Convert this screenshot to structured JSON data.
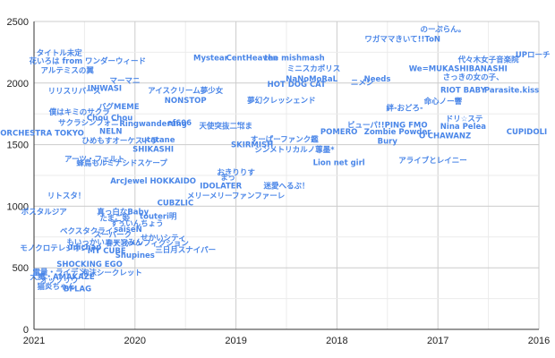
{
  "chart_data": {
    "type": "scatter",
    "title": "",
    "xlabel": "",
    "ylabel": "",
    "x_reversed": true,
    "xlim": [
      2021,
      2016
    ],
    "ylim": [
      0,
      2500
    ],
    "grid": true,
    "x_ticks": [
      "2021",
      "2020",
      "2019",
      "2018",
      "2017",
      "2016"
    ],
    "y_ticks": [
      "0",
      "500",
      "1000",
      "1500",
      "2000",
      "2500"
    ],
    "label_color": "#4a86e8",
    "points": [
      {
        "label": "のーぷらん。",
        "x": 2016.95,
        "y": 2440
      },
      {
        "label": "ワガママきいて!!ToN",
        "x": 2017.35,
        "y": 2360
      },
      {
        "label": "代々木女子音楽院",
        "x": 2016.5,
        "y": 2190
      },
      {
        "label": "UPローチ",
        "x": 2016.06,
        "y": 2230
      },
      {
        "label": "Mystear",
        "x": 2019.25,
        "y": 2205
      },
      {
        "label": "CentHeaven",
        "x": 2018.84,
        "y": 2205
      },
      {
        "label": "the mishmash",
        "x": 2018.42,
        "y": 2205
      },
      {
        "label": "タイトル未定",
        "x": 2020.75,
        "y": 2245
      },
      {
        "label": "花いろは from ワンダーウィード",
        "x": 2020.47,
        "y": 2180
      },
      {
        "label": "アルテミスの翼",
        "x": 2020.67,
        "y": 2105
      },
      {
        "label": "ミニスカポリス",
        "x": 2018.23,
        "y": 2120
      },
      {
        "label": "We=MUKASHIBANASHI",
        "x": 2016.8,
        "y": 2120
      },
      {
        "label": "さっきの女の子、",
        "x": 2016.65,
        "y": 2050
      },
      {
        "label": "マーマニ",
        "x": 2020.1,
        "y": 2020
      },
      {
        "label": "NaNoMoRaL",
        "x": 2018.25,
        "y": 2035
      },
      {
        "label": "ニメシ",
        "x": 2017.75,
        "y": 2005
      },
      {
        "label": "Needs",
        "x": 2017.6,
        "y": 2035
      },
      {
        "label": "HOT DOG CAT",
        "x": 2018.4,
        "y": 1990
      },
      {
        "label": "INIWASI",
        "x": 2020.3,
        "y": 1960
      },
      {
        "label": "リリスリバース",
        "x": 2020.6,
        "y": 1935
      },
      {
        "label": "アイスクリーム夢少女",
        "x": 2019.5,
        "y": 1940
      },
      {
        "label": "RIOT BABY",
        "x": 2016.75,
        "y": 1945
      },
      {
        "label": "Parasite.kiss",
        "x": 2016.27,
        "y": 1945
      },
      {
        "label": "NONSTOP",
        "x": 2019.5,
        "y": 1860
      },
      {
        "label": "夢幻クレッシェンド",
        "x": 2018.55,
        "y": 1860
      },
      {
        "label": "命心ノー響",
        "x": 2016.95,
        "y": 1855
      },
      {
        "label": "バグMEME",
        "x": 2020.16,
        "y": 1810
      },
      {
        "label": "絆-おどろ-",
        "x": 2017.33,
        "y": 1800
      },
      {
        "label": "僕はキミのサクラ",
        "x": 2020.55,
        "y": 1765
      },
      {
        "label": "Chou Chou",
        "x": 2020.25,
        "y": 1720
      },
      {
        "label": "ドリ☆ステ",
        "x": 2016.74,
        "y": 1710
      },
      {
        "label": "サクラシンフォニ",
        "x": 2020.46,
        "y": 1680
      },
      {
        "label": "Ringwanderung",
        "x": 2019.82,
        "y": 1670
      },
      {
        "label": "ef606",
        "x": 2019.56,
        "y": 1680
      },
      {
        "label": "天使突抜二㌖ま",
        "x": 2019.1,
        "y": 1655
      },
      {
        "label": "ビューパ!!PING FMO",
        "x": 2017.5,
        "y": 1660
      },
      {
        "label": "Nina Pelea",
        "x": 2016.75,
        "y": 1650
      },
      {
        "label": "Zombie Powder",
        "x": 2017.4,
        "y": 1605
      },
      {
        "label": "POMERO",
        "x": 2017.98,
        "y": 1605
      },
      {
        "label": "O'CHAWANZ",
        "x": 2016.93,
        "y": 1575
      },
      {
        "label": "CUPIDOLI",
        "x": 2016.12,
        "y": 1605
      },
      {
        "label": "ORCHESTRA TOKYO",
        "x": 2020.92,
        "y": 1595
      },
      {
        "label": "NELN",
        "x": 2020.24,
        "y": 1610
      },
      {
        "label": "ひめもすオーケストラ",
        "x": 2020.15,
        "y": 1535
      },
      {
        "label": "utatane",
        "x": 2019.77,
        "y": 1540
      },
      {
        "label": "Bury",
        "x": 2017.5,
        "y": 1530
      },
      {
        "label": "すーぱーファンク鑑",
        "x": 2018.52,
        "y": 1545
      },
      {
        "label": "SKIRMISH",
        "x": 2018.84,
        "y": 1500
      },
      {
        "label": "シンメトリカルノ蓴墨*",
        "x": 2018.42,
        "y": 1460
      },
      {
        "label": "SHIKASHI",
        "x": 2019.82,
        "y": 1465
      },
      {
        "label": "アーツ・フェルト",
        "x": 2020.4,
        "y": 1385
      },
      {
        "label": "アライブとレイニー",
        "x": 2017.05,
        "y": 1375
      },
      {
        "label": "Lion net girl",
        "x": 2017.98,
        "y": 1355
      },
      {
        "label": "蜂鳥もルミナシドスケープ",
        "x": 2020.13,
        "y": 1350
      },
      {
        "label": "おきりりす",
        "x": 2019.0,
        "y": 1275
      },
      {
        "label": "まっ",
        "x": 2019.08,
        "y": 1235
      },
      {
        "label": "ArcJewel HOKKAIDO",
        "x": 2019.82,
        "y": 1205
      },
      {
        "label": "IDOLATER",
        "x": 2019.15,
        "y": 1165
      },
      {
        "label": "迷愛へるぶ！",
        "x": 2018.5,
        "y": 1165
      },
      {
        "label": "リトスタ！",
        "x": 2020.68,
        "y": 1085
      },
      {
        "label": "メリーメリーファンファーレ",
        "x": 2019.0,
        "y": 1085
      },
      {
        "label": "CUBZLIC",
        "x": 2019.6,
        "y": 1030
      },
      {
        "label": "ポスタルジア",
        "x": 2020.9,
        "y": 955
      },
      {
        "label": "真っ白なBaby",
        "x": 2020.12,
        "y": 955
      },
      {
        "label": "touteri明",
        "x": 2019.77,
        "y": 920
      },
      {
        "label": "たまご姫",
        "x": 2020.2,
        "y": 905
      },
      {
        "label": "すぅいんちょう",
        "x": 2019.98,
        "y": 860
      },
      {
        "label": "saiseN",
        "x": 2020.07,
        "y": 815
      },
      {
        "label": "ベクスタクライ",
        "x": 2020.48,
        "y": 800
      },
      {
        "label": "スーパーク",
        "x": 2020.22,
        "y": 770
      },
      {
        "label": "せかいシティ",
        "x": 2019.72,
        "y": 745
      },
      {
        "label": "もいっかいニャンみん",
        "x": 2020.3,
        "y": 710
      },
      {
        "label": "春天我メンフィクション",
        "x": 2019.88,
        "y": 700
      },
      {
        "label": "モノクロテレジオン",
        "x": 2020.8,
        "y": 660
      },
      {
        "label": "unichap",
        "x": 2020.5,
        "y": 670
      },
      {
        "label": "MY CUBE",
        "x": 2020.28,
        "y": 640
      },
      {
        "label": "三日月スナイパー",
        "x": 2019.5,
        "y": 645
      },
      {
        "label": "Shupines",
        "x": 2020.0,
        "y": 605
      },
      {
        "label": "SHOCKING EGO",
        "x": 2020.45,
        "y": 530
      },
      {
        "label": "電量・ライデン",
        "x": 2020.75,
        "y": 465
      },
      {
        "label": "泡沫シークレット",
        "x": 2020.23,
        "y": 460
      },
      {
        "label": "大魔・AMAKAZE",
        "x": 2020.72,
        "y": 430
      },
      {
        "label": "オッソリウ",
        "x": 2020.75,
        "y": 400
      },
      {
        "label": "猫炎ちゃん",
        "x": 2020.78,
        "y": 350
      },
      {
        "label": "BFLAG",
        "x": 2020.57,
        "y": 330
      }
    ]
  }
}
